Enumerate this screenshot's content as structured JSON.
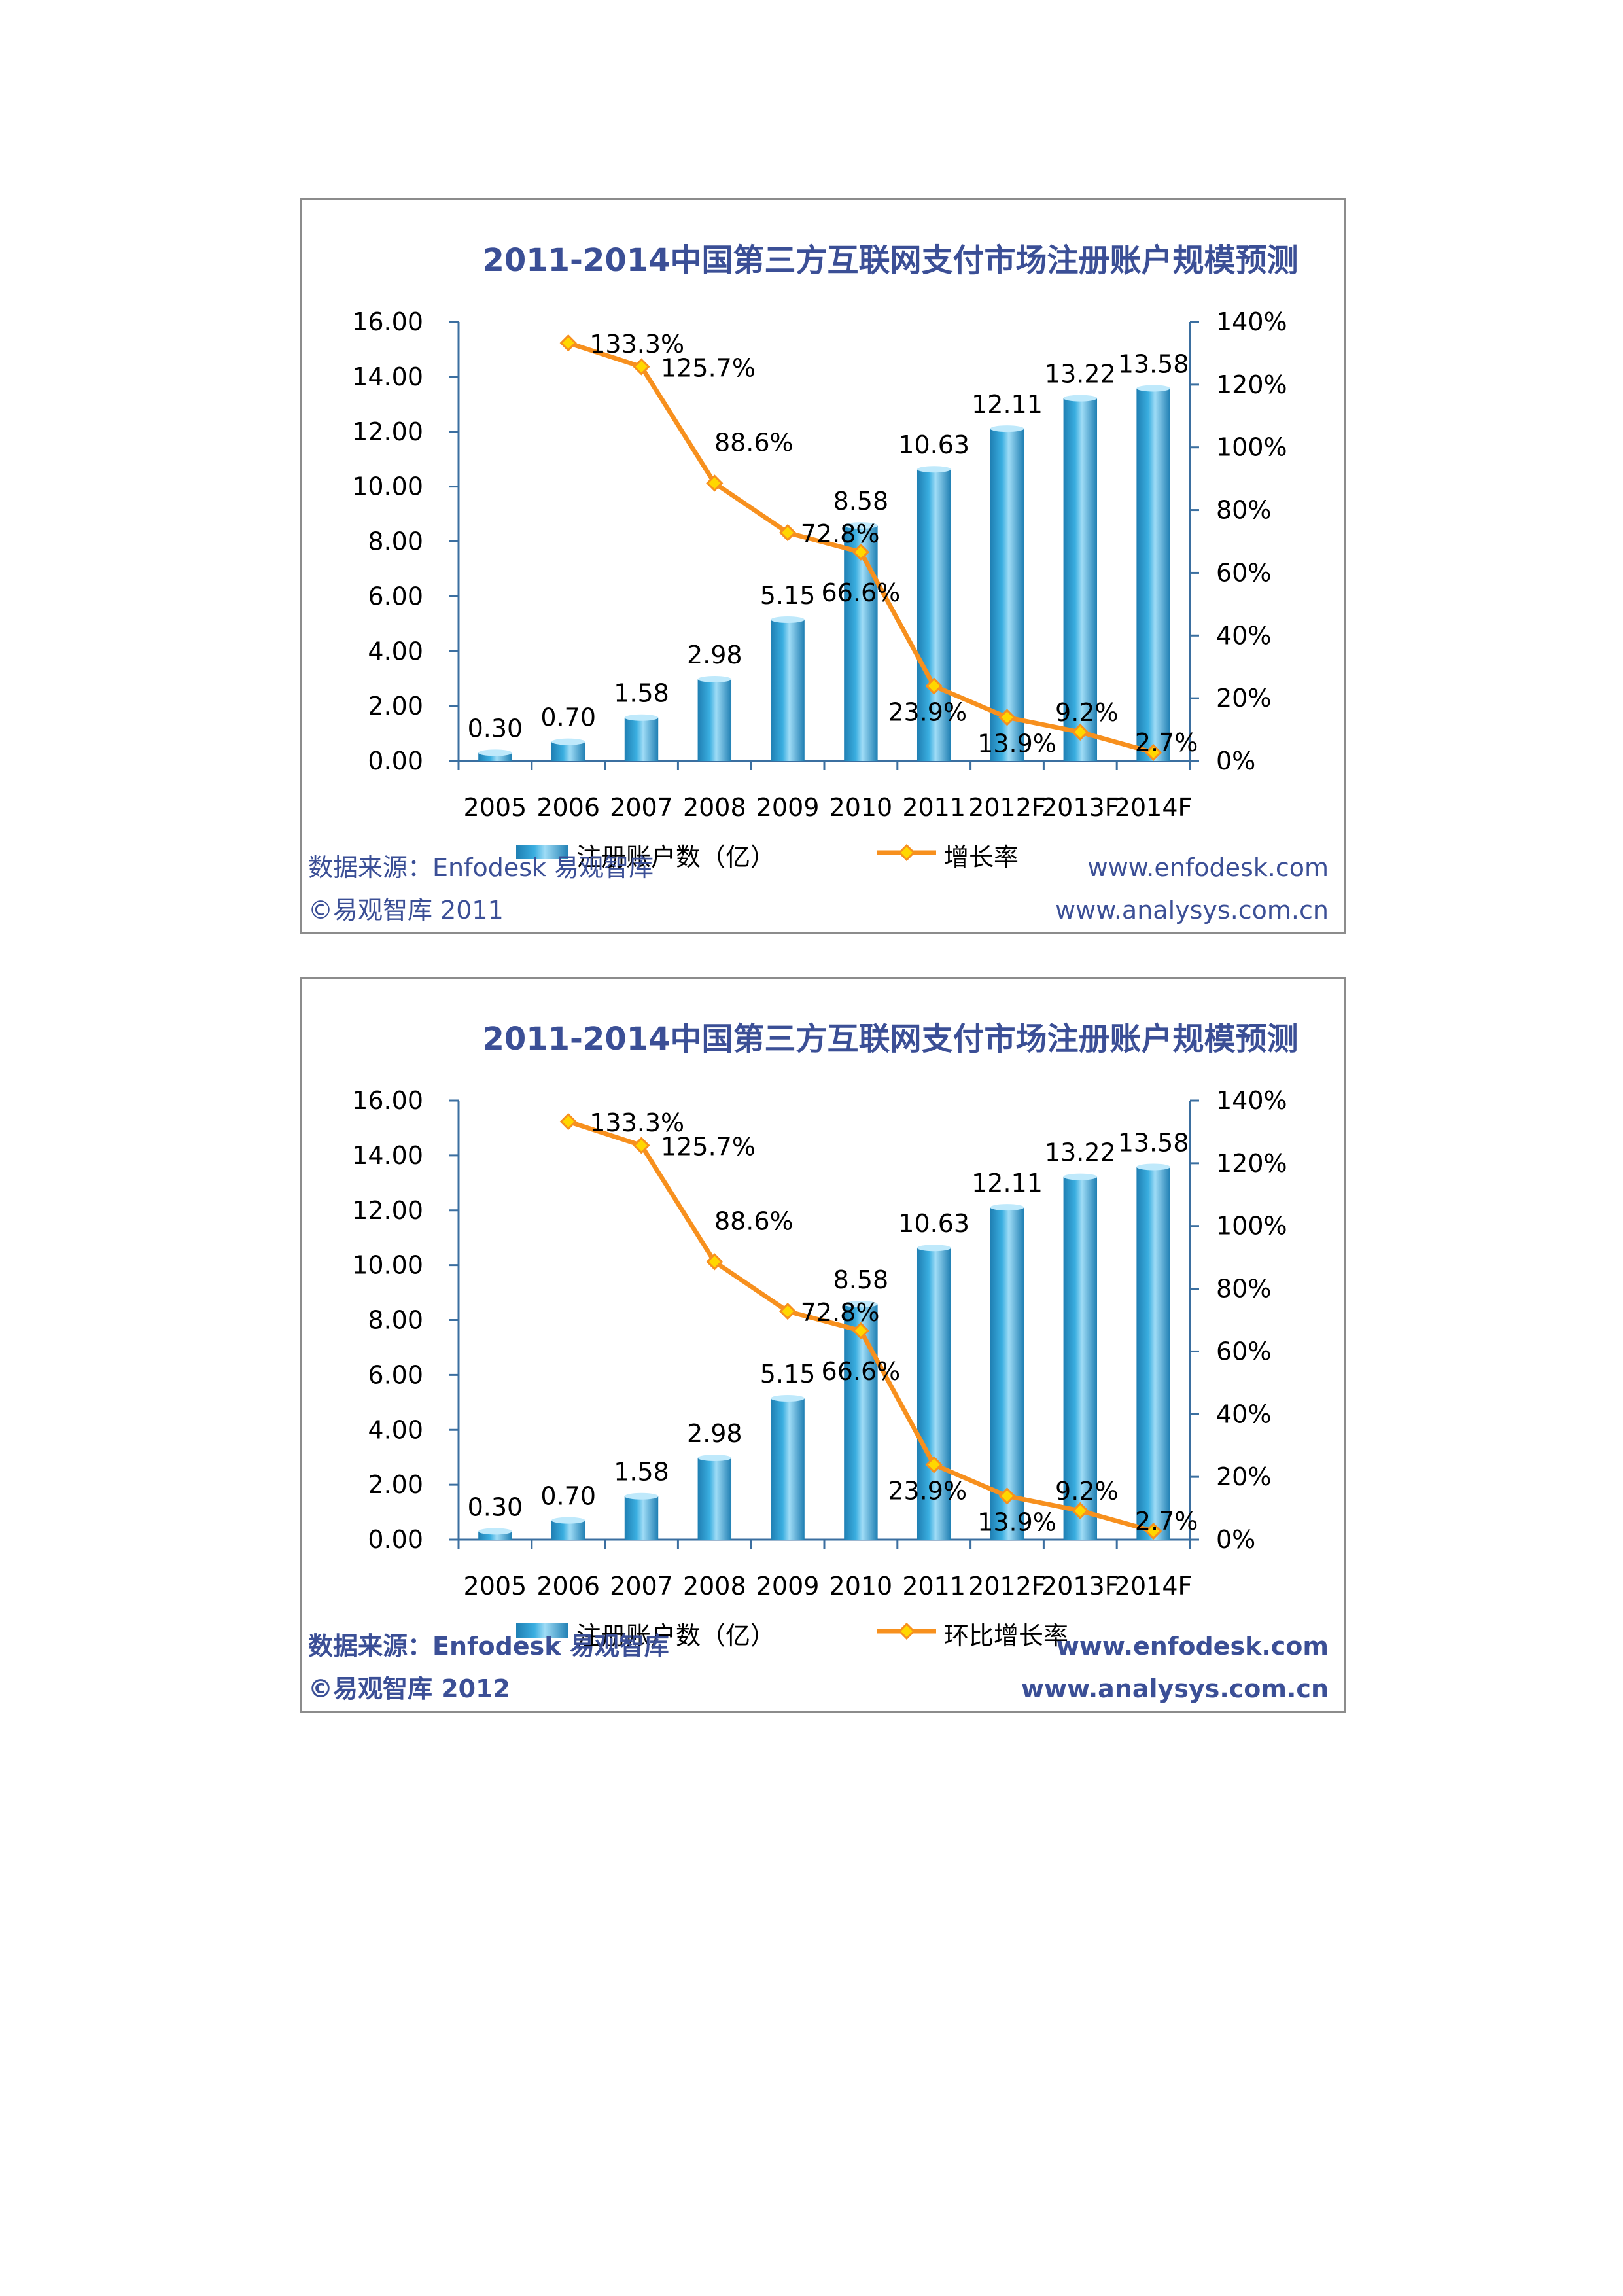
{
  "charts": [
    {
      "footer": {
        "source": "数据来源：Enfodesk 易观智库",
        "copyright": "©易观智库 2011",
        "url1": "www.enfodesk.com",
        "url2": "www.analysys.com.cn"
      }
    },
    {
      "footer": {
        "source": "数据来源：Enfodesk 易观智库",
        "copyright": "©易观智库 2012",
        "url1": "www.enfodesk.com",
        "url2": "www.analysys.com.cn"
      }
    }
  ],
  "chart_data": [
    {
      "type": "bar",
      "title": "2011-2014中国第三方互联网支付市场注册账户规模预测",
      "categories": [
        "2005",
        "2006",
        "2007",
        "2008",
        "2009",
        "2010",
        "2011",
        "2012F",
        "2013F",
        "2014F"
      ],
      "series": [
        {
          "name": "注册账户数（亿）",
          "type": "bar",
          "axis": "left",
          "values": [
            0.3,
            0.7,
            1.58,
            2.98,
            5.15,
            8.58,
            10.63,
            12.11,
            13.22,
            13.58
          ],
          "labels": [
            "0.30",
            "0.70",
            "1.58",
            "2.98",
            "5.15",
            "8.58",
            "10.63",
            "12.11",
            "13.22",
            "13.58"
          ]
        },
        {
          "name": "增长率",
          "type": "line",
          "axis": "right",
          "values": [
            null,
            133.3,
            125.7,
            88.6,
            72.8,
            66.6,
            23.9,
            13.9,
            9.2,
            2.7
          ],
          "labels": [
            "",
            "133.3%",
            "125.7%",
            "88.6%",
            "72.8%",
            "66.6%",
            "23.9%",
            "13.9%",
            "9.2%",
            "2.7%"
          ]
        }
      ],
      "y_left": {
        "min": 0,
        "max": 16,
        "step": 2,
        "ticks": [
          "0.00",
          "2.00",
          "4.00",
          "6.00",
          "8.00",
          "10.00",
          "12.00",
          "14.00",
          "16.00"
        ]
      },
      "y_right": {
        "min": 0,
        "max": 140,
        "step": 20,
        "ticks": [
          "0%",
          "20%",
          "40%",
          "60%",
          "80%",
          "100%",
          "120%",
          "140%"
        ]
      },
      "colors": {
        "bar": "#3aaee0",
        "bar_dark": "#1f7fb3",
        "line": "#f7901e",
        "marker": "#ffd700",
        "title": "#3b4f96"
      },
      "legend": "bottom",
      "grid": false
    },
    {
      "type": "bar",
      "title": "2011-2014中国第三方互联网支付市场注册账户规模预测",
      "categories": [
        "2005",
        "2006",
        "2007",
        "2008",
        "2009",
        "2010",
        "2011",
        "2012F",
        "2013F",
        "2014F"
      ],
      "series": [
        {
          "name": "注册账户数（亿）",
          "type": "bar",
          "axis": "left",
          "values": [
            0.3,
            0.7,
            1.58,
            2.98,
            5.15,
            8.58,
            10.63,
            12.11,
            13.22,
            13.58
          ],
          "labels": [
            "0.30",
            "0.70",
            "1.58",
            "2.98",
            "5.15",
            "8.58",
            "10.63",
            "12.11",
            "13.22",
            "13.58"
          ]
        },
        {
          "name": "环比增长率",
          "type": "line",
          "axis": "right",
          "values": [
            null,
            133.3,
            125.7,
            88.6,
            72.8,
            66.6,
            23.9,
            13.9,
            9.2,
            2.7
          ],
          "labels": [
            "",
            "133.3%",
            "125.7%",
            "88.6%",
            "72.8%",
            "66.6%",
            "23.9%",
            "13.9%",
            "9.2%",
            "2.7%"
          ]
        }
      ],
      "y_left": {
        "min": 0,
        "max": 16,
        "step": 2,
        "ticks": [
          "0.00",
          "2.00",
          "4.00",
          "6.00",
          "8.00",
          "10.00",
          "12.00",
          "14.00",
          "16.00"
        ]
      },
      "y_right": {
        "min": 0,
        "max": 140,
        "step": 20,
        "ticks": [
          "0%",
          "20%",
          "40%",
          "60%",
          "80%",
          "100%",
          "120%",
          "140%"
        ]
      },
      "colors": {
        "bar": "#3aaee0",
        "bar_dark": "#1f7fb3",
        "line": "#f7901e",
        "marker": "#ffd700",
        "title": "#3b4f96"
      },
      "legend": "bottom",
      "grid": false
    }
  ]
}
